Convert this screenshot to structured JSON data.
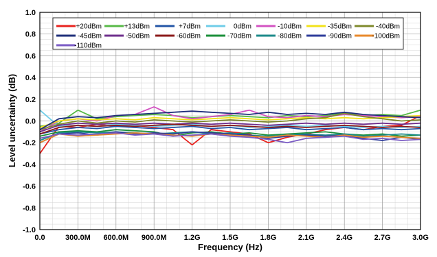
{
  "chart_data": {
    "type": "line",
    "title": "",
    "xlabel": "Frequency (Hz)",
    "ylabel": "Level uncertainty (dB)",
    "xlim": [
      0,
      3000000000
    ],
    "ylim": [
      -1.0,
      1.0
    ],
    "grid": true,
    "legend_position": "top",
    "x_ticks": [
      {
        "value": 0,
        "label": "0.0"
      },
      {
        "value": 300000000,
        "label": "300.0M"
      },
      {
        "value": 600000000,
        "label": "600.0M"
      },
      {
        "value": 900000000,
        "label": "900.0M"
      },
      {
        "value": 1200000000,
        "label": "1.2G"
      },
      {
        "value": 1500000000,
        "label": "1.5G"
      },
      {
        "value": 1800000000,
        "label": "1.8G"
      },
      {
        "value": 2100000000,
        "label": "2.1G"
      },
      {
        "value": 2400000000,
        "label": "2.4G"
      },
      {
        "value": 2700000000,
        "label": "2.7G"
      },
      {
        "value": 3000000000,
        "label": "3.0G"
      }
    ],
    "y_ticks": [
      {
        "value": 1.0,
        "label": "1.0"
      },
      {
        "value": 0.8,
        "label": "0.8"
      },
      {
        "value": 0.6,
        "label": "0.6"
      },
      {
        "value": 0.4,
        "label": "0.4"
      },
      {
        "value": 0.2,
        "label": "0.2"
      },
      {
        "value": 0.0,
        "label": "0.0"
      },
      {
        "value": -0.2,
        "label": "-0.2"
      },
      {
        "value": -0.4,
        "label": "-0.4"
      },
      {
        "value": -0.6,
        "label": "-0.6"
      },
      {
        "value": -0.8,
        "label": "-0.8"
      },
      {
        "value": -1.0,
        "label": "-1.0"
      }
    ],
    "x": [
      0,
      150000000,
      300000000,
      450000000,
      600000000,
      750000000,
      900000000,
      1050000000,
      1200000000,
      1350000000,
      1500000000,
      1650000000,
      1800000000,
      1950000000,
      2100000000,
      2250000000,
      2400000000,
      2550000000,
      2700000000,
      2850000000,
      3000000000
    ],
    "series": [
      {
        "name": "+20dBm",
        "color": "#e8231f",
        "values": [
          -0.3,
          -0.05,
          -0.06,
          -0.03,
          -0.05,
          -0.04,
          -0.06,
          -0.08,
          -0.22,
          -0.08,
          -0.1,
          -0.12,
          -0.2,
          -0.15,
          -0.12,
          -0.08,
          -0.06,
          -0.08,
          -0.05,
          -0.04,
          0.05
        ]
      },
      {
        "name": "+13dBm",
        "color": "#58b947",
        "values": [
          -0.05,
          -0.02,
          0.1,
          0.02,
          0.04,
          0.05,
          0.06,
          0.05,
          0.03,
          0.04,
          0.05,
          0.04,
          0.03,
          0.05,
          0.04,
          0.05,
          0.07,
          0.05,
          0.06,
          0.05,
          0.1
        ]
      },
      {
        "name": "+7dBm",
        "color": "#2355a6",
        "values": [
          -0.12,
          -0.08,
          -0.06,
          -0.07,
          -0.05,
          -0.06,
          -0.07,
          -0.06,
          -0.05,
          -0.07,
          -0.06,
          -0.08,
          -0.07,
          -0.06,
          -0.08,
          -0.07,
          -0.06,
          -0.08,
          -0.07,
          -0.08,
          -0.07
        ]
      },
      {
        "name": "0dBm",
        "color": "#6fcde8",
        "values": [
          0.1,
          -0.05,
          -0.04,
          -0.05,
          -0.03,
          -0.04,
          -0.05,
          -0.04,
          -0.03,
          -0.05,
          -0.04,
          -0.06,
          -0.05,
          -0.04,
          -0.05,
          -0.04,
          -0.05,
          -0.06,
          -0.05,
          -0.06,
          -0.05
        ]
      },
      {
        "name": "-10dBm",
        "color": "#d353c2",
        "values": [
          -0.1,
          0.0,
          0.02,
          0.0,
          0.05,
          0.06,
          0.13,
          0.05,
          0.02,
          0.04,
          0.06,
          0.1,
          0.04,
          0.03,
          0.05,
          0.04,
          0.06,
          0.05,
          0.04,
          0.03,
          0.04
        ]
      },
      {
        "name": "-35dBm",
        "color": "#f2e21b",
        "values": [
          -0.06,
          0.0,
          0.02,
          0.01,
          0.02,
          0.01,
          0.03,
          0.02,
          0.01,
          0.02,
          0.03,
          0.02,
          0.01,
          0.02,
          0.03,
          0.02,
          0.03,
          0.02,
          0.03,
          0.04,
          0.05
        ]
      },
      {
        "name": "-40dBm",
        "color": "#7f8a2c",
        "values": [
          -0.08,
          -0.03,
          0.0,
          -0.02,
          0.0,
          -0.01,
          0.01,
          0.0,
          -0.01,
          0.0,
          0.01,
          0.0,
          -0.01,
          0.0,
          0.02,
          0.03,
          0.07,
          0.04,
          0.02,
          0.0,
          0.01
        ]
      },
      {
        "name": "-45dBm",
        "color": "#1f2f7a",
        "values": [
          -0.08,
          0.02,
          0.04,
          0.03,
          0.05,
          0.06,
          0.07,
          0.08,
          0.09,
          0.08,
          0.07,
          0.06,
          0.08,
          0.06,
          0.07,
          0.06,
          0.08,
          0.06,
          0.05,
          0.04,
          0.03
        ]
      },
      {
        "name": "-50dBm",
        "color": "#6f2f8c",
        "values": [
          -0.1,
          -0.04,
          -0.02,
          -0.03,
          -0.02,
          -0.03,
          -0.02,
          -0.03,
          -0.02,
          -0.03,
          -0.02,
          -0.03,
          -0.04,
          -0.03,
          -0.02,
          -0.03,
          -0.02,
          -0.03,
          -0.02,
          -0.03,
          -0.02
        ]
      },
      {
        "name": "-60dBm",
        "color": "#8b1a1a",
        "values": [
          -0.12,
          -0.06,
          -0.04,
          -0.05,
          -0.04,
          -0.05,
          -0.04,
          -0.03,
          -0.04,
          -0.05,
          -0.04,
          -0.05,
          -0.06,
          -0.05,
          -0.06,
          -0.05,
          -0.04,
          -0.05,
          -0.06,
          -0.05,
          -0.06
        ]
      },
      {
        "name": "-70dBm",
        "color": "#1b8f3a",
        "values": [
          -0.14,
          -0.1,
          -0.09,
          -0.1,
          -0.08,
          -0.09,
          -0.1,
          -0.14,
          -0.11,
          -0.1,
          -0.12,
          -0.11,
          -0.13,
          -0.12,
          -0.11,
          -0.1,
          -0.12,
          -0.13,
          -0.12,
          -0.14,
          -0.13
        ]
      },
      {
        "name": "-80dBm",
        "color": "#1d8a8a",
        "values": [
          -0.18,
          -0.11,
          -0.1,
          -0.11,
          -0.1,
          -0.11,
          -0.12,
          -0.11,
          -0.1,
          -0.12,
          -0.11,
          -0.13,
          -0.14,
          -0.13,
          -0.12,
          -0.13,
          -0.12,
          -0.14,
          -0.13,
          -0.12,
          -0.13
        ]
      },
      {
        "name": "-90dBm",
        "color": "#2e3c9a",
        "values": [
          -0.2,
          -0.12,
          -0.11,
          -0.13,
          -0.1,
          -0.12,
          -0.11,
          -0.12,
          -0.1,
          -0.11,
          -0.12,
          -0.13,
          -0.16,
          -0.14,
          -0.13,
          -0.14,
          -0.13,
          -0.16,
          -0.18,
          -0.15,
          -0.17
        ]
      },
      {
        "name": "-100dBm",
        "color": "#e8892b",
        "values": [
          -0.2,
          -0.12,
          -0.14,
          -0.13,
          -0.12,
          -0.11,
          -0.12,
          -0.13,
          -0.14,
          -0.12,
          -0.13,
          -0.14,
          -0.15,
          -0.13,
          -0.14,
          -0.15,
          -0.13,
          -0.15,
          -0.14,
          -0.15,
          -0.16
        ]
      },
      {
        "name": "-110dBm",
        "color": "#7a5bc4",
        "values": [
          -0.16,
          -0.12,
          -0.13,
          -0.12,
          -0.11,
          -0.13,
          -0.12,
          -0.14,
          -0.13,
          -0.12,
          -0.14,
          -0.15,
          -0.17,
          -0.2,
          -0.16,
          -0.15,
          -0.14,
          -0.17,
          -0.16,
          -0.18,
          -0.17
        ]
      }
    ]
  }
}
